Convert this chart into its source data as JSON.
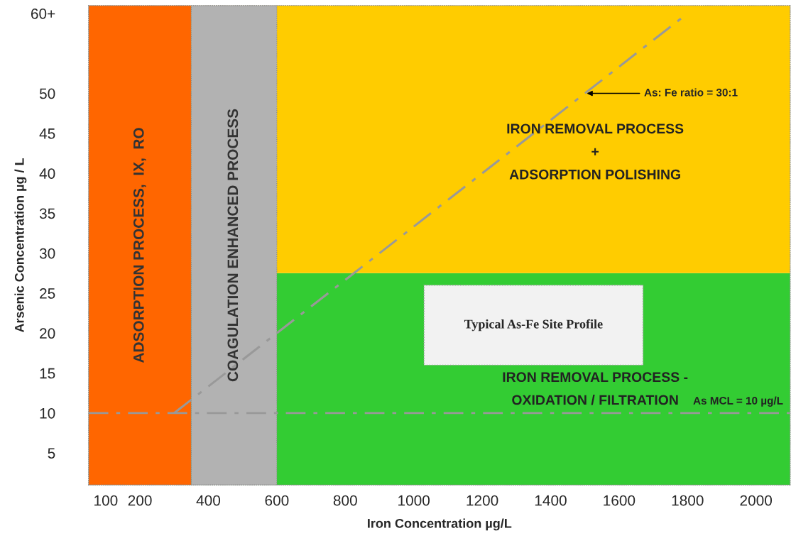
{
  "chart_data": {
    "type": "line",
    "xlabel": "Iron Concentration µg/L",
    "ylabel": "Arsenic Concentration µg / L",
    "xlim": [
      50,
      2100
    ],
    "ylim": [
      1,
      61
    ],
    "xticks": [
      100,
      200,
      400,
      600,
      800,
      1000,
      1200,
      1400,
      1600,
      1800,
      2000
    ],
    "yticks": [
      5,
      10,
      15,
      20,
      25,
      30,
      35,
      40,
      45,
      50,
      {
        "value": 60,
        "label": "60+"
      }
    ],
    "series": [
      {
        "color": "#999999",
        "x": [
          300,
          1800
        ],
        "values": [
          10,
          60
        ],
        "line_style": "dashdot"
      }
    ],
    "bands": [
      {
        "axis": "y",
        "from": 1,
        "to": 27.5,
        "color": "#33cc33",
        "label": "IRON REMOVAL PROCESS -\nOXIDATION / FILTRATION"
      },
      {
        "axis": "y",
        "from": 27.5,
        "to": 61,
        "color": "#ffcc00",
        "label": "IRON REMOVAL PROCESS\n+\nADSORPTION POLISHING"
      },
      {
        "axis": "x",
        "from": 50,
        "to": 350,
        "color": "#ff6600",
        "label": "ADSORPTION PROCESS,  IX,  RO"
      },
      {
        "axis": "x",
        "from": 350,
        "to": 600,
        "color": "#b2b2b2",
        "label": "COAGULATION ENHANCED PROCESS"
      }
    ],
    "ref_lines": [
      {
        "axis": "y",
        "value": 10,
        "label": "As MCL = 10 µg/L",
        "color": "#999999",
        "line_style": "dashdot"
      }
    ],
    "annotations": [
      {
        "text": "As: Fe ratio = 30:1",
        "x": 1500,
        "y": 50
      },
      "Typical As-Fe Site Profile"
    ],
    "grid": false,
    "legend": false
  }
}
